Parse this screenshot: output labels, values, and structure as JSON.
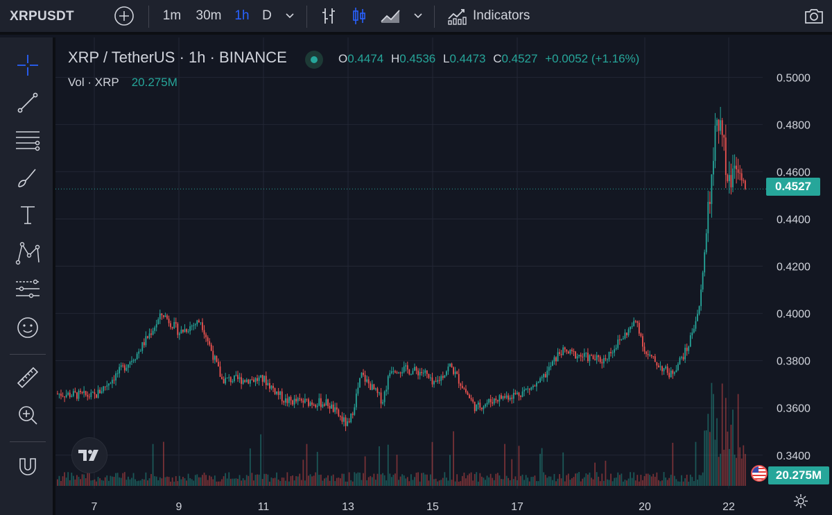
{
  "toolbar": {
    "symbol": "XRPUSDT",
    "intervals": [
      "1m",
      "30m",
      "1h",
      "D"
    ],
    "active_interval": "1h",
    "indicators_label": "Indicators"
  },
  "legend": {
    "title": "XRP / TetherUS · 1h · BINANCE",
    "open_key": "O",
    "open": "0.4474",
    "high_key": "H",
    "high": "0.4536",
    "low_key": "L",
    "low": "0.4473",
    "close_key": "C",
    "close": "0.4527",
    "change": "+0.0052 (+1.16%)",
    "vol_label": "Vol · XRP",
    "vol_value": "20.275M"
  },
  "price_tag": "0.4527",
  "vol_tag": "20.275M",
  "colors": {
    "up": "#26a69a",
    "down": "#ef5350",
    "background": "#131722",
    "panel": "#1e222d",
    "accent": "#2962ff"
  },
  "icons": [
    "crosshair-icon",
    "trend-line-icon",
    "fib-lines-icon",
    "brush-icon",
    "text-icon",
    "pattern-icon",
    "forecast-icon",
    "emoji-icon",
    "ruler-icon",
    "zoom-icon",
    "magnet-icon"
  ],
  "chart_data": {
    "type": "candlestick",
    "title": "XRP / TetherUS · 1h · BINANCE",
    "ylim": [
      0.342,
      0.5045
    ],
    "y_ticks": [
      "0.5000",
      "0.4800",
      "0.4600",
      "0.4400",
      "0.4200",
      "0.4000",
      "0.3800",
      "0.3600",
      "0.3400"
    ],
    "x_ticks": [
      "7",
      "9",
      "11",
      "13",
      "15",
      "17",
      "20",
      "22"
    ],
    "last_price": 0.4527,
    "grid": true,
    "series": [
      {
        "name": "XRP / TetherUS",
        "points": [
          [
            "start",
            0.366
          ],
          [
            "7",
            0.365
          ],
          [
            "8",
            0.383
          ],
          [
            "8.6",
            0.4
          ],
          [
            "9",
            0.392
          ],
          [
            "9.5",
            0.397
          ],
          [
            "10",
            0.372
          ],
          [
            "11",
            0.372
          ],
          [
            "11.5",
            0.363
          ],
          [
            "12.5",
            0.362
          ],
          [
            "13",
            0.352
          ],
          [
            "13.3",
            0.374
          ],
          [
            "13.8",
            0.363
          ],
          [
            "14",
            0.377
          ],
          [
            "14.8",
            0.375
          ],
          [
            "15",
            0.369
          ],
          [
            "15.4",
            0.378
          ],
          [
            "16",
            0.36
          ],
          [
            "16.5",
            0.364
          ],
          [
            "17",
            0.366
          ],
          [
            "17.5",
            0.37
          ],
          [
            "18",
            0.384
          ],
          [
            "18.5",
            0.382
          ],
          [
            "19",
            0.38
          ],
          [
            "19.8",
            0.397
          ],
          [
            "20",
            0.383
          ],
          [
            "20.6",
            0.374
          ],
          [
            "21",
            0.385
          ],
          [
            "21.3",
            0.404
          ],
          [
            "21.5",
            0.443
          ],
          [
            "21.7",
            0.488
          ],
          [
            "22",
            0.455
          ],
          [
            "22.2",
            0.466
          ],
          [
            "22.4",
            0.4527
          ]
        ]
      }
    ],
    "volume": {
      "label": "Vol · XRP",
      "last": "20.275M",
      "profile": [
        [
          "7-21",
          "low, 20–60 px bars"
        ],
        [
          "21.5-22.2",
          "high, 110–170 px bars"
        ]
      ]
    }
  }
}
